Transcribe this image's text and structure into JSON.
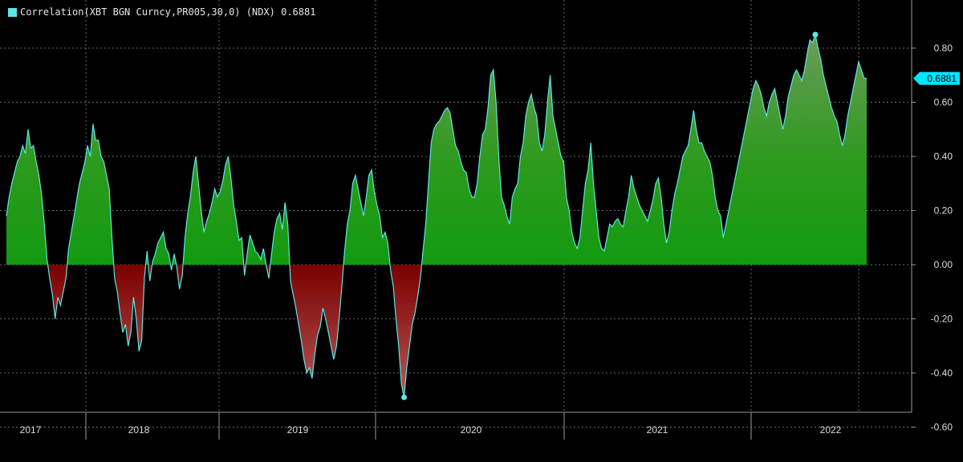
{
  "chart_data": {
    "type": "area",
    "legend_label": "Correlation(XBT BGN Curncy,PR005,30,0) (NDX) 0.6881",
    "last_value_label": "0.6881",
    "series": [
      {
        "values": [
          0.18,
          0.25,
          0.3,
          0.34,
          0.38,
          0.4,
          0.44,
          0.41,
          0.5,
          0.43,
          0.44,
          0.38,
          0.33,
          0.26,
          0.15,
          0.02,
          -0.05,
          -0.11,
          -0.2,
          -0.12,
          -0.15,
          -0.1,
          -0.05,
          0.06,
          0.12,
          0.18,
          0.24,
          0.3,
          0.34,
          0.38,
          0.44,
          0.4,
          0.52,
          0.46,
          0.46,
          0.4,
          0.38,
          0.33,
          0.28,
          0.1,
          -0.05,
          -0.1,
          -0.18,
          -0.25,
          -0.22,
          -0.3,
          -0.25,
          -0.12,
          -0.2,
          -0.32,
          -0.28,
          -0.05,
          0.05,
          -0.06,
          0.01,
          0.04,
          0.08,
          0.1,
          0.12,
          0.06,
          0.04,
          -0.02,
          0.04,
          -0.01,
          -0.09,
          -0.04,
          0.1,
          0.19,
          0.25,
          0.34,
          0.4,
          0.3,
          0.2,
          0.12,
          0.16,
          0.19,
          0.23,
          0.28,
          0.25,
          0.27,
          0.31,
          0.37,
          0.4,
          0.32,
          0.22,
          0.16,
          0.09,
          0.1,
          -0.04,
          0.04,
          0.11,
          0.08,
          0.05,
          0.04,
          0.02,
          0.06,
          0.0,
          -0.05,
          0.04,
          0.12,
          0.17,
          0.19,
          0.13,
          0.23,
          0.15,
          -0.06,
          -0.11,
          -0.16,
          -0.22,
          -0.28,
          -0.35,
          -0.4,
          -0.38,
          -0.42,
          -0.33,
          -0.26,
          -0.23,
          -0.16,
          -0.2,
          -0.25,
          -0.3,
          -0.35,
          -0.3,
          -0.2,
          -0.08,
          0.05,
          0.15,
          0.2,
          0.3,
          0.33,
          0.28,
          0.23,
          0.18,
          0.25,
          0.33,
          0.35,
          0.27,
          0.22,
          0.18,
          0.1,
          0.12,
          0.08,
          -0.02,
          -0.08,
          -0.2,
          -0.3,
          -0.44,
          -0.49,
          -0.38,
          -0.3,
          -0.22,
          -0.18,
          -0.12,
          -0.05,
          0.05,
          0.15,
          0.3,
          0.45,
          0.5,
          0.52,
          0.53,
          0.55,
          0.57,
          0.58,
          0.56,
          0.5,
          0.44,
          0.42,
          0.38,
          0.35,
          0.34,
          0.28,
          0.25,
          0.25,
          0.3,
          0.4,
          0.48,
          0.5,
          0.58,
          0.7,
          0.72,
          0.6,
          0.4,
          0.25,
          0.22,
          0.18,
          0.15,
          0.25,
          0.28,
          0.3,
          0.4,
          0.45,
          0.55,
          0.6,
          0.63,
          0.58,
          0.55,
          0.45,
          0.42,
          0.48,
          0.6,
          0.7,
          0.55,
          0.5,
          0.45,
          0.4,
          0.38,
          0.25,
          0.2,
          0.12,
          0.08,
          0.06,
          0.1,
          0.2,
          0.3,
          0.35,
          0.45,
          0.3,
          0.2,
          0.1,
          0.06,
          0.05,
          0.1,
          0.15,
          0.14,
          0.16,
          0.17,
          0.15,
          0.14,
          0.2,
          0.25,
          0.33,
          0.28,
          0.25,
          0.22,
          0.2,
          0.18,
          0.16,
          0.2,
          0.24,
          0.3,
          0.32,
          0.25,
          0.15,
          0.08,
          0.12,
          0.2,
          0.26,
          0.3,
          0.35,
          0.4,
          0.42,
          0.44,
          0.5,
          0.57,
          0.5,
          0.45,
          0.45,
          0.42,
          0.4,
          0.38,
          0.33,
          0.25,
          0.2,
          0.18,
          0.1,
          0.15,
          0.2,
          0.25,
          0.3,
          0.35,
          0.4,
          0.45,
          0.5,
          0.55,
          0.6,
          0.65,
          0.68,
          0.66,
          0.63,
          0.58,
          0.55,
          0.6,
          0.63,
          0.65,
          0.6,
          0.55,
          0.5,
          0.55,
          0.62,
          0.66,
          0.7,
          0.72,
          0.7,
          0.68,
          0.72,
          0.78,
          0.83,
          0.82,
          0.85,
          0.8,
          0.76,
          0.7,
          0.66,
          0.62,
          0.58,
          0.55,
          0.53,
          0.48,
          0.44,
          0.48,
          0.55,
          0.6,
          0.65,
          0.7,
          0.75,
          0.72,
          0.69,
          0.6881
        ]
      }
    ],
    "x_labels": [
      "2017",
      "2018",
      "2019",
      "2020",
      "2021",
      "2022"
    ],
    "y_ticks": [
      0.8,
      0.6,
      0.4,
      0.2,
      0.0,
      -0.2,
      -0.4,
      -0.6
    ],
    "y_tick_labels": [
      "0.80",
      "0.60",
      "0.40",
      "0.20",
      "0.00",
      "-0.20",
      "-0.40",
      "-0.60"
    ],
    "ylim": [
      -0.62,
      0.92
    ],
    "grid": true,
    "colors": {
      "line": "#5ce6e6",
      "positive_fill": "#1f9e1f",
      "negative_fill": "#a01010",
      "marker": "#5ce6e6",
      "grid": "#6a6a6a",
      "axis": "#9a9a9a",
      "text": "#dddddd",
      "label_bg": "#00e5ff"
    }
  }
}
